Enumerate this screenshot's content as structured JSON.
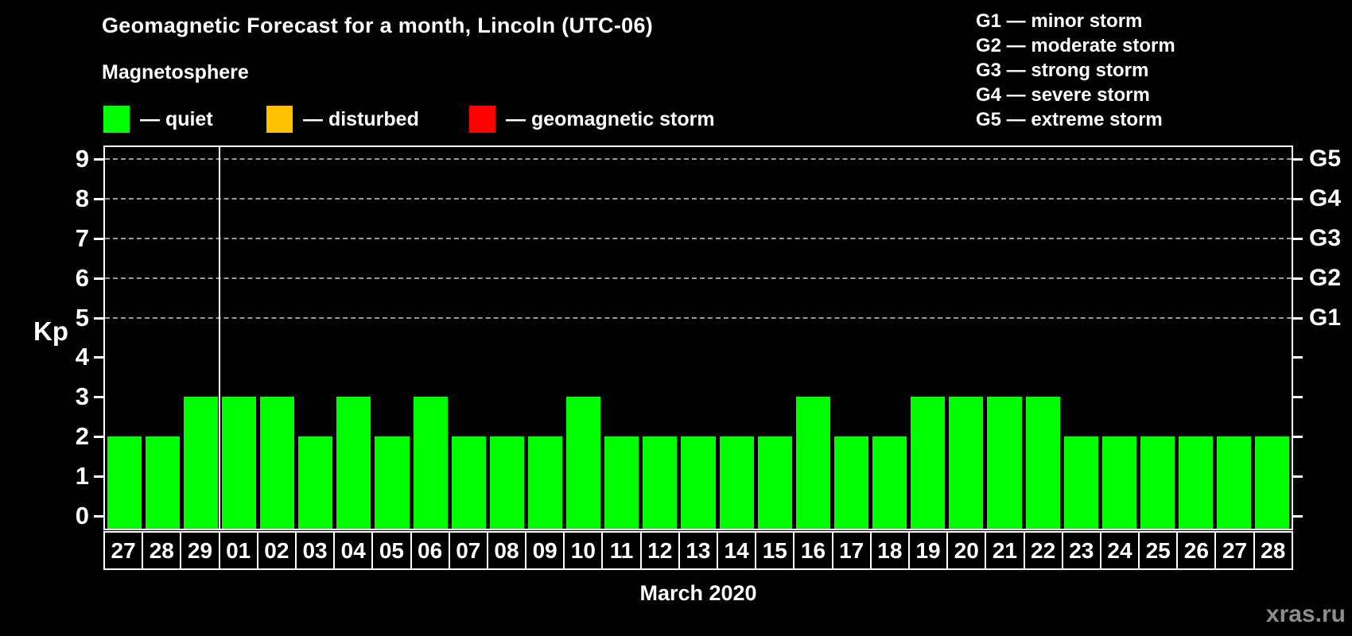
{
  "title": "Geomagnetic Forecast for a month, Lincoln (UTC-06)",
  "magnetosphere_legend": {
    "heading": "Magnetosphere",
    "items": [
      {
        "name": "quiet",
        "label": "— quiet",
        "color": "#00FF00"
      },
      {
        "name": "disturbed",
        "label": "— disturbed",
        "color": "#FFC000"
      },
      {
        "name": "geomagnetic-storm",
        "label": "— geomagnetic storm",
        "color": "#FF0000"
      }
    ]
  },
  "storm_scale_legend": {
    "items": [
      "G1 — minor storm",
      "G2 — moderate storm",
      "G3 — strong storm",
      "G4 — severe storm",
      "G5 — extreme storm"
    ]
  },
  "watermark": "xras.ru",
  "chart_data": {
    "type": "bar",
    "title": "Geomagnetic Forecast for a month, Lincoln (UTC-06)",
    "ylabel": "Kp",
    "xlabel": "March 2020",
    "ylim": [
      0,
      9
    ],
    "y_ticks": [
      "0",
      "1",
      "2",
      "3",
      "4",
      "5",
      "6",
      "7",
      "8",
      "9"
    ],
    "right_axis_ticks": [
      {
        "label": "G1",
        "kp": 5
      },
      {
        "label": "G2",
        "kp": 6
      },
      {
        "label": "G3",
        "kp": 7
      },
      {
        "label": "G4",
        "kp": 8
      },
      {
        "label": "G5",
        "kp": 9
      }
    ],
    "gridlines_kp": [
      5,
      6,
      7,
      8,
      9
    ],
    "grid_style": "dashed-horizontal",
    "categories": [
      "27",
      "28",
      "29",
      "01",
      "02",
      "03",
      "04",
      "05",
      "06",
      "07",
      "08",
      "09",
      "10",
      "11",
      "12",
      "13",
      "14",
      "15",
      "16",
      "17",
      "18",
      "19",
      "20",
      "21",
      "22",
      "23",
      "24",
      "25",
      "26",
      "27",
      "28"
    ],
    "values": [
      2,
      2,
      3,
      3,
      3,
      2,
      3,
      2,
      3,
      2,
      2,
      2,
      3,
      2,
      2,
      2,
      2,
      2,
      3,
      2,
      2,
      3,
      3,
      3,
      3,
      2,
      2,
      2,
      2,
      2,
      2
    ],
    "bar_color": "#00FF00",
    "month_separator_after_index": 2
  }
}
